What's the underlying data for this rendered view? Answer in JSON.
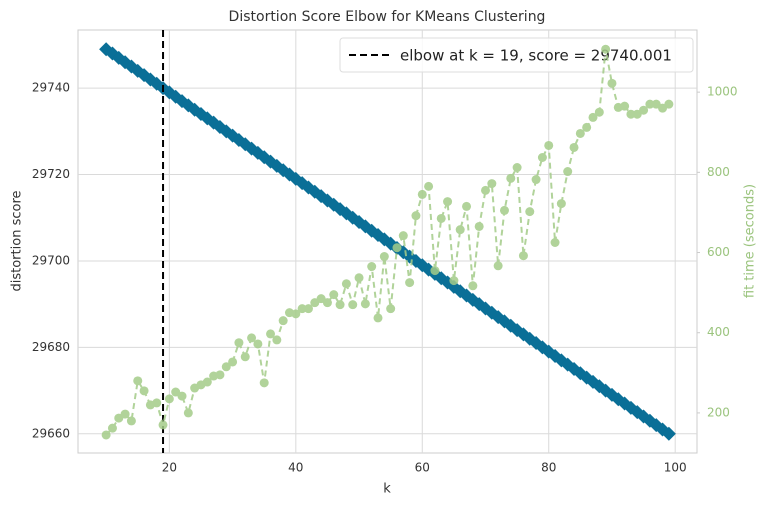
{
  "chart_data": {
    "type": "line",
    "title": "Distortion Score Elbow for KMeans Clustering",
    "xlabel": "k",
    "ylabel": "distortion score",
    "y2label": "fit time (seconds)",
    "x": [
      10,
      11,
      12,
      13,
      14,
      15,
      16,
      17,
      18,
      19,
      20,
      21,
      22,
      23,
      24,
      25,
      26,
      27,
      28,
      29,
      30,
      31,
      32,
      33,
      34,
      35,
      36,
      37,
      38,
      39,
      40,
      41,
      42,
      43,
      44,
      45,
      46,
      47,
      48,
      49,
      50,
      51,
      52,
      53,
      54,
      55,
      56,
      57,
      58,
      59,
      60,
      61,
      62,
      63,
      64,
      65,
      66,
      67,
      68,
      69,
      70,
      71,
      72,
      73,
      74,
      75,
      76,
      77,
      78,
      79,
      80,
      81,
      82,
      83,
      84,
      85,
      86,
      87,
      88,
      89,
      90,
      91,
      92,
      93,
      94,
      95,
      96,
      97,
      98,
      99
    ],
    "series": [
      {
        "name": "distortion score",
        "color": "#0a6f97",
        "marker": "diamond",
        "axis": "y",
        "values": [
          29749,
          29748,
          29747,
          29746,
          29745,
          29744,
          29743,
          29742,
          29741,
          29740,
          29739,
          29738,
          29737,
          29736,
          29735,
          29734,
          29733,
          29732,
          29731,
          29730,
          29729,
          29728,
          29727,
          29726,
          29725,
          29724,
          29723,
          29722,
          29721,
          29720,
          29719,
          29718,
          29717,
          29716,
          29715,
          29714,
          29713,
          29712,
          29711,
          29710,
          29709,
          29708,
          29707,
          29706,
          29705,
          29704,
          29703,
          29702,
          29701,
          29700,
          29699,
          29698,
          29697,
          29696,
          29695,
          29694,
          29693,
          29692,
          29691,
          29690,
          29689,
          29688,
          29687,
          29686,
          29685,
          29684,
          29683,
          29682,
          29681,
          29680,
          29679,
          29678,
          29677,
          29676,
          29675,
          29674,
          29673,
          29672,
          29671,
          29670,
          29669,
          29668,
          29667,
          29666,
          29665,
          29664,
          29663,
          29662,
          29661,
          29660
        ]
      },
      {
        "name": "fit time (seconds)",
        "color": "#a4cc89",
        "marker": "circle",
        "axis": "y2",
        "values": [
          145,
          162,
          187,
          197,
          180,
          280,
          255,
          220,
          225,
          170,
          235,
          252,
          242,
          200,
          262,
          270,
          277,
          292,
          295,
          315,
          327,
          375,
          340,
          387,
          372,
          275,
          397,
          382,
          430,
          450,
          447,
          460,
          460,
          475,
          485,
          475,
          495,
          470,
          522,
          470,
          537,
          472,
          565,
          437,
          590,
          460,
          612,
          642,
          525,
          692,
          745,
          765,
          555,
          685,
          727,
          530,
          657,
          715,
          517,
          665,
          755,
          772,
          567,
          705,
          785,
          812,
          592,
          702,
          782,
          837,
          867,
          625,
          722,
          802,
          862,
          897,
          912,
          937,
          950,
          1107,
          1022,
          962,
          965,
          945,
          945,
          955,
          970,
          970,
          960,
          970
        ]
      }
    ],
    "elbow": {
      "k": 19,
      "label": "elbow at k = 19, score = 29740.001",
      "color": "#000000"
    },
    "legend": "upper right",
    "xlim": [
      5.55,
      103.45
    ],
    "xticks": [
      20,
      40,
      60,
      80,
      100
    ],
    "ylim": [
      29655.55,
      29753.45
    ],
    "yticks": [
      29660,
      29680,
      29700,
      29720,
      29740
    ],
    "y2lim": [
      100,
      1155
    ],
    "y2ticks": [
      200,
      400,
      600,
      800,
      1000
    ],
    "grid": true
  }
}
